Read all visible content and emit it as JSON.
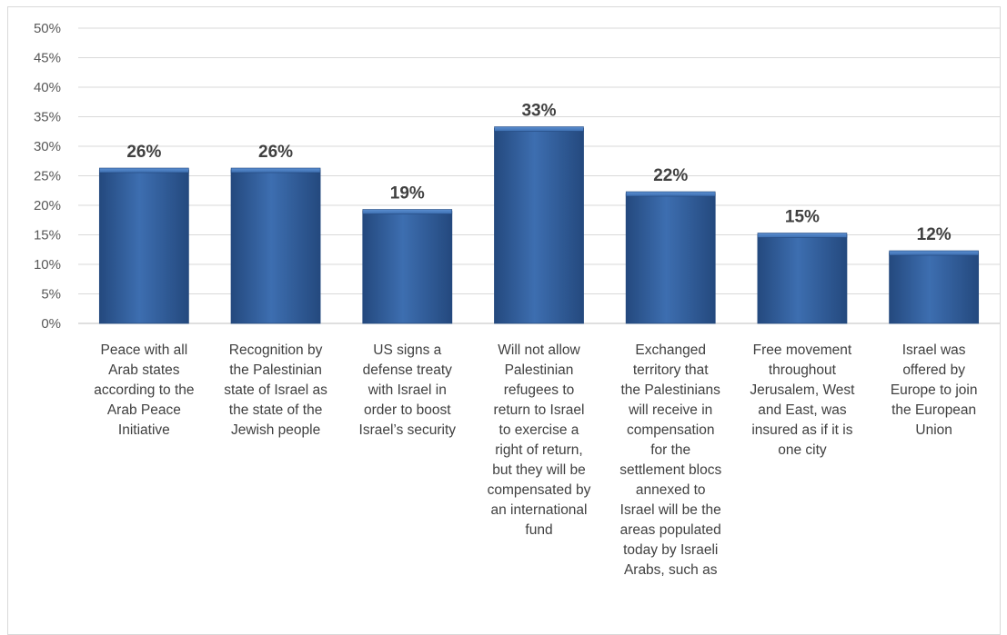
{
  "chart_data": {
    "type": "bar",
    "title": "",
    "xlabel": "",
    "ylabel": "",
    "ylim": [
      0,
      50
    ],
    "y_ticks": [
      "0%",
      "5%",
      "10%",
      "15%",
      "20%",
      "25%",
      "30%",
      "35%",
      "40%",
      "45%",
      "50%"
    ],
    "grid": true,
    "categories": [
      [
        "Peace with all",
        "Arab states",
        "according to the",
        "Arab Peace",
        "Initiative"
      ],
      [
        "Recognition by",
        "the Palestinian",
        "state of Israel as",
        "the state of the",
        "Jewish people"
      ],
      [
        "US signs a",
        "defense treaty",
        "with Israel in",
        "order to boost",
        "Israel’s security"
      ],
      [
        "Will not allow",
        "Palestinian",
        "refugees to",
        "return to Israel",
        "to exercise a",
        "right of return,",
        "but they will be",
        "compensated by",
        "an international",
        "fund"
      ],
      [
        "Exchanged",
        "territory that",
        "the Palestinians",
        "will receive in",
        "compensation",
        "for the",
        "settlement blocs",
        "annexed to",
        "Israel will be the",
        "areas populated",
        "today by Israeli",
        "Arabs, such as"
      ],
      [
        "Free movement",
        "throughout",
        "Jerusalem, West",
        "and East, was",
        "insured as if it is",
        "one city"
      ],
      [
        "Israel was",
        "offered by",
        "Europe to join",
        "the European",
        "Union"
      ]
    ],
    "values": [
      26,
      26,
      19,
      33,
      22,
      15,
      12
    ],
    "data_labels": [
      "26%",
      "26%",
      "19%",
      "33%",
      "22%",
      "15%",
      "12%"
    ],
    "colors": {
      "bar": "#3d6eb0",
      "bar_light": "#5b8fd1",
      "bar_dark": "#24497e",
      "grid": "#d9d9d9",
      "axis": "#bfbfbf",
      "text": "#404040"
    }
  }
}
